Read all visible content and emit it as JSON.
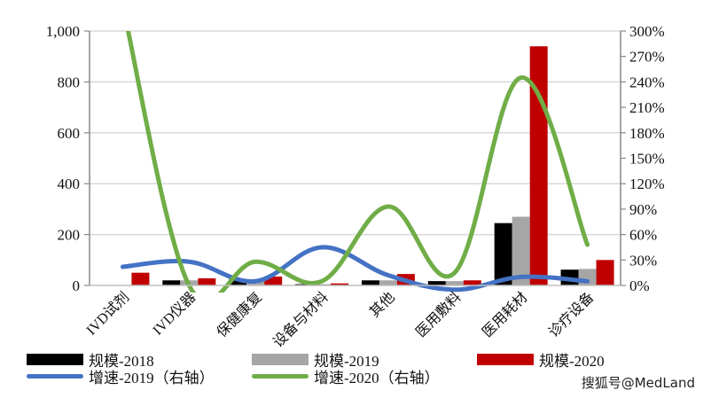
{
  "chart_data": {
    "type": "bar",
    "title": "",
    "xlabel": "",
    "ylabel": "",
    "categories": [
      "IVD试剂",
      "IVD仪器",
      "保健康复",
      "设备与材料",
      "其他",
      "医用敷料",
      "医用耗材",
      "诊疗设备"
    ],
    "series": [
      {
        "name": "规模-2018",
        "type": "bar",
        "axis": "left",
        "color": "#000000",
        "values": [
          0,
          20,
          25,
          5,
          20,
          17,
          245,
          62
        ]
      },
      {
        "name": "规模-2019",
        "type": "bar",
        "axis": "left",
        "color": "#a6a6a6",
        "values": [
          0,
          20,
          20,
          5,
          20,
          17,
          270,
          65
        ]
      },
      {
        "name": "规模-2020",
        "type": "bar",
        "axis": "left",
        "color": "#c00000",
        "values": [
          50,
          28,
          35,
          8,
          45,
          20,
          940,
          100
        ]
      },
      {
        "name": "增速-2019（右轴）",
        "type": "line",
        "axis": "right",
        "color": "#4472c4",
        "values": [
          22,
          28,
          5,
          45,
          12,
          -5,
          10,
          5
        ]
      },
      {
        "name": "增速-2020（右轴）",
        "type": "line",
        "axis": "right",
        "color": "#70ad47",
        "values": [
          330,
          0,
          28,
          5,
          93,
          15,
          245,
          48
        ]
      }
    ],
    "ylim": [
      0,
      1000
    ],
    "y2lim": [
      0,
      300
    ],
    "y_ticks": [
      "0",
      "200",
      "400",
      "600",
      "800",
      "1,000"
    ],
    "y2_ticks": [
      "0%",
      "30%",
      "60%",
      "90%",
      "120%",
      "150%",
      "180%",
      "210%",
      "240%",
      "270%",
      "300%"
    ],
    "grid": true,
    "legend_position": "bottom"
  },
  "legend": {
    "items": [
      {
        "label": "规模-2018",
        "kind": "bar",
        "color": "#000000"
      },
      {
        "label": "规模-2019",
        "kind": "bar",
        "color": "#a6a6a6"
      },
      {
        "label": "规模-2020",
        "kind": "bar",
        "color": "#c00000"
      },
      {
        "label": "增速-2019（右轴）",
        "kind": "line",
        "color": "#4472c4"
      },
      {
        "label": "增速-2020（右轴）",
        "kind": "line",
        "color": "#70ad47"
      }
    ]
  },
  "watermark": "搜狐号@MedLand"
}
